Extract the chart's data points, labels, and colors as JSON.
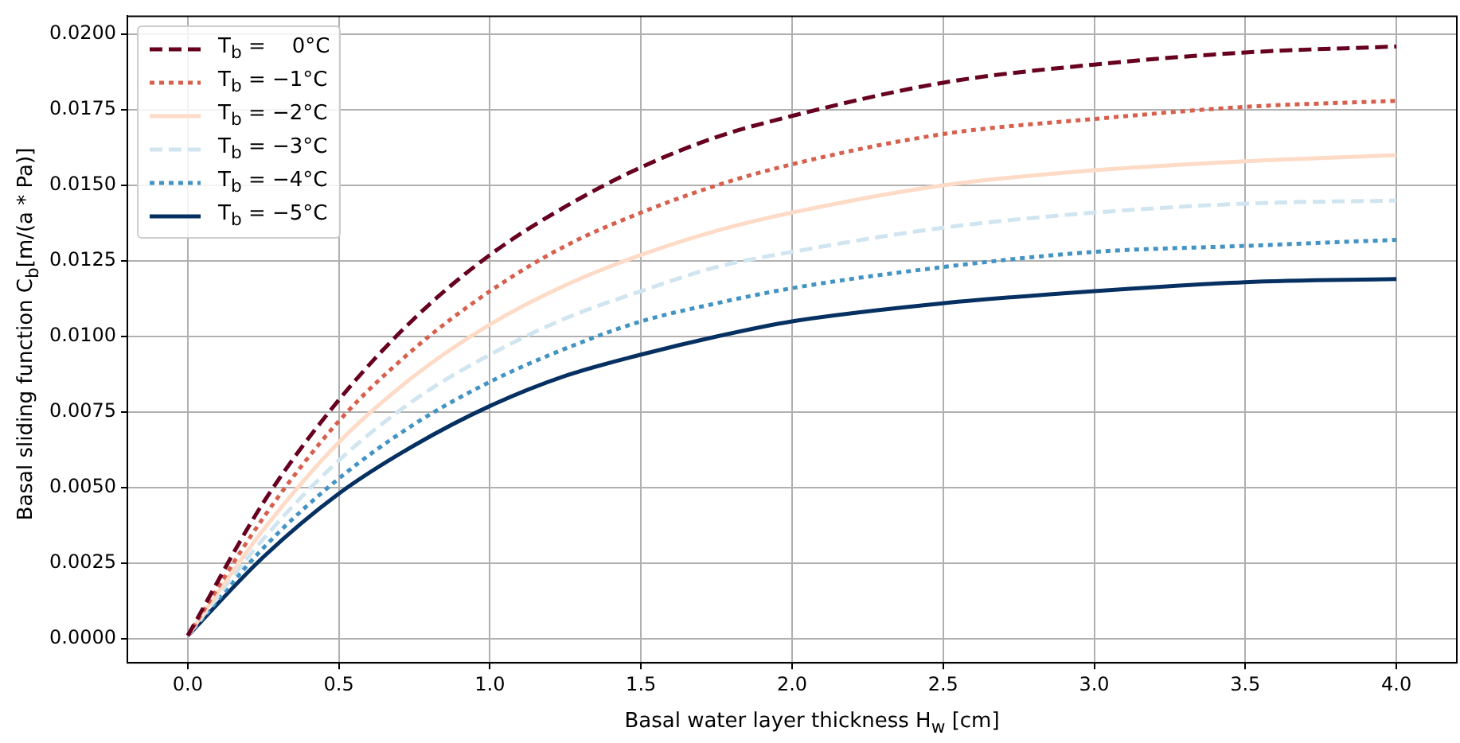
{
  "chart_data": {
    "type": "line",
    "xlabel": "Basal water layer thickness H$_{w}$ [cm]",
    "ylabel": "Basal sliding function C$_{b}$[m/(a * Pa)]",
    "x": [
      0,
      0.25,
      0.5,
      0.75,
      1,
      1.25,
      1.5,
      1.75,
      2,
      2.5,
      3,
      3.5,
      4
    ],
    "series": [
      {
        "name": "T$_{b}$ =    0°C",
        "color": "#67001f",
        "line_style": "dashed",
        "values": [
          0.0001,
          0.0045,
          0.0079,
          0.0106,
          0.0127,
          0.0143,
          0.0156,
          0.0166,
          0.0173,
          0.0184,
          0.019,
          0.0194,
          0.0196
        ]
      },
      {
        "name": "T$_{b}$ = −1°C",
        "color": "#d6604d",
        "line_style": "dotted",
        "values": [
          0.0001,
          0.004,
          0.0072,
          0.0096,
          0.0115,
          0.013,
          0.0141,
          0.015,
          0.0157,
          0.0167,
          0.0172,
          0.0176,
          0.0178
        ]
      },
      {
        "name": "T$_{b}$ = −2°C",
        "color": "#fddbc7",
        "line_style": "solid",
        "values": [
          0.0001,
          0.0036,
          0.0065,
          0.0087,
          0.0104,
          0.0117,
          0.0127,
          0.0135,
          0.0141,
          0.015,
          0.0155,
          0.0158,
          0.016
        ]
      },
      {
        "name": "T$_{b}$ = −3°C",
        "color": "#d1e5f0",
        "line_style": "dashed",
        "values": [
          0.0001,
          0.0033,
          0.0059,
          0.0079,
          0.0094,
          0.0106,
          0.0115,
          0.0123,
          0.0128,
          0.0136,
          0.0141,
          0.0144,
          0.0145
        ]
      },
      {
        "name": "T$_{b}$ = −4°C",
        "color": "#4393c3",
        "line_style": "dotted",
        "values": [
          0.0001,
          0.003,
          0.0053,
          0.0071,
          0.0085,
          0.0096,
          0.0105,
          0.0111,
          0.0116,
          0.0123,
          0.0128,
          0.013,
          0.0132
        ]
      },
      {
        "name": "T$_{b}$ = −5°C",
        "color": "#053061",
        "line_style": "solid",
        "values": [
          0.0001,
          0.0027,
          0.0048,
          0.0064,
          0.0077,
          0.0087,
          0.0094,
          0.01,
          0.0105,
          0.0111,
          0.0115,
          0.0118,
          0.0119
        ]
      }
    ],
    "xlim": [
      -0.2,
      4.2
    ],
    "ylim": [
      -0.0008,
      0.0206
    ],
    "xticks": [
      {
        "value": 0,
        "label": "0.0"
      },
      {
        "value": 0.5,
        "label": "0.5"
      },
      {
        "value": 1,
        "label": "1.0"
      },
      {
        "value": 1.5,
        "label": "1.5"
      },
      {
        "value": 2,
        "label": "2.0"
      },
      {
        "value": 2.5,
        "label": "2.5"
      },
      {
        "value": 3,
        "label": "3.0"
      },
      {
        "value": 3.5,
        "label": "3.5"
      },
      {
        "value": 4,
        "label": "4.0"
      }
    ],
    "yticks": [
      {
        "value": 0,
        "label": "0.0000"
      },
      {
        "value": 0.0025,
        "label": "0.0025"
      },
      {
        "value": 0.005,
        "label": "0.0050"
      },
      {
        "value": 0.0075,
        "label": "0.0075"
      },
      {
        "value": 0.01,
        "label": "0.0100"
      },
      {
        "value": 0.0125,
        "label": "0.0125"
      },
      {
        "value": 0.015,
        "label": "0.0150"
      },
      {
        "value": 0.0175,
        "label": "0.0175"
      },
      {
        "value": 0.02,
        "label": "0.0200"
      }
    ],
    "grid": true,
    "legend": "top left",
    "marker": "none"
  }
}
